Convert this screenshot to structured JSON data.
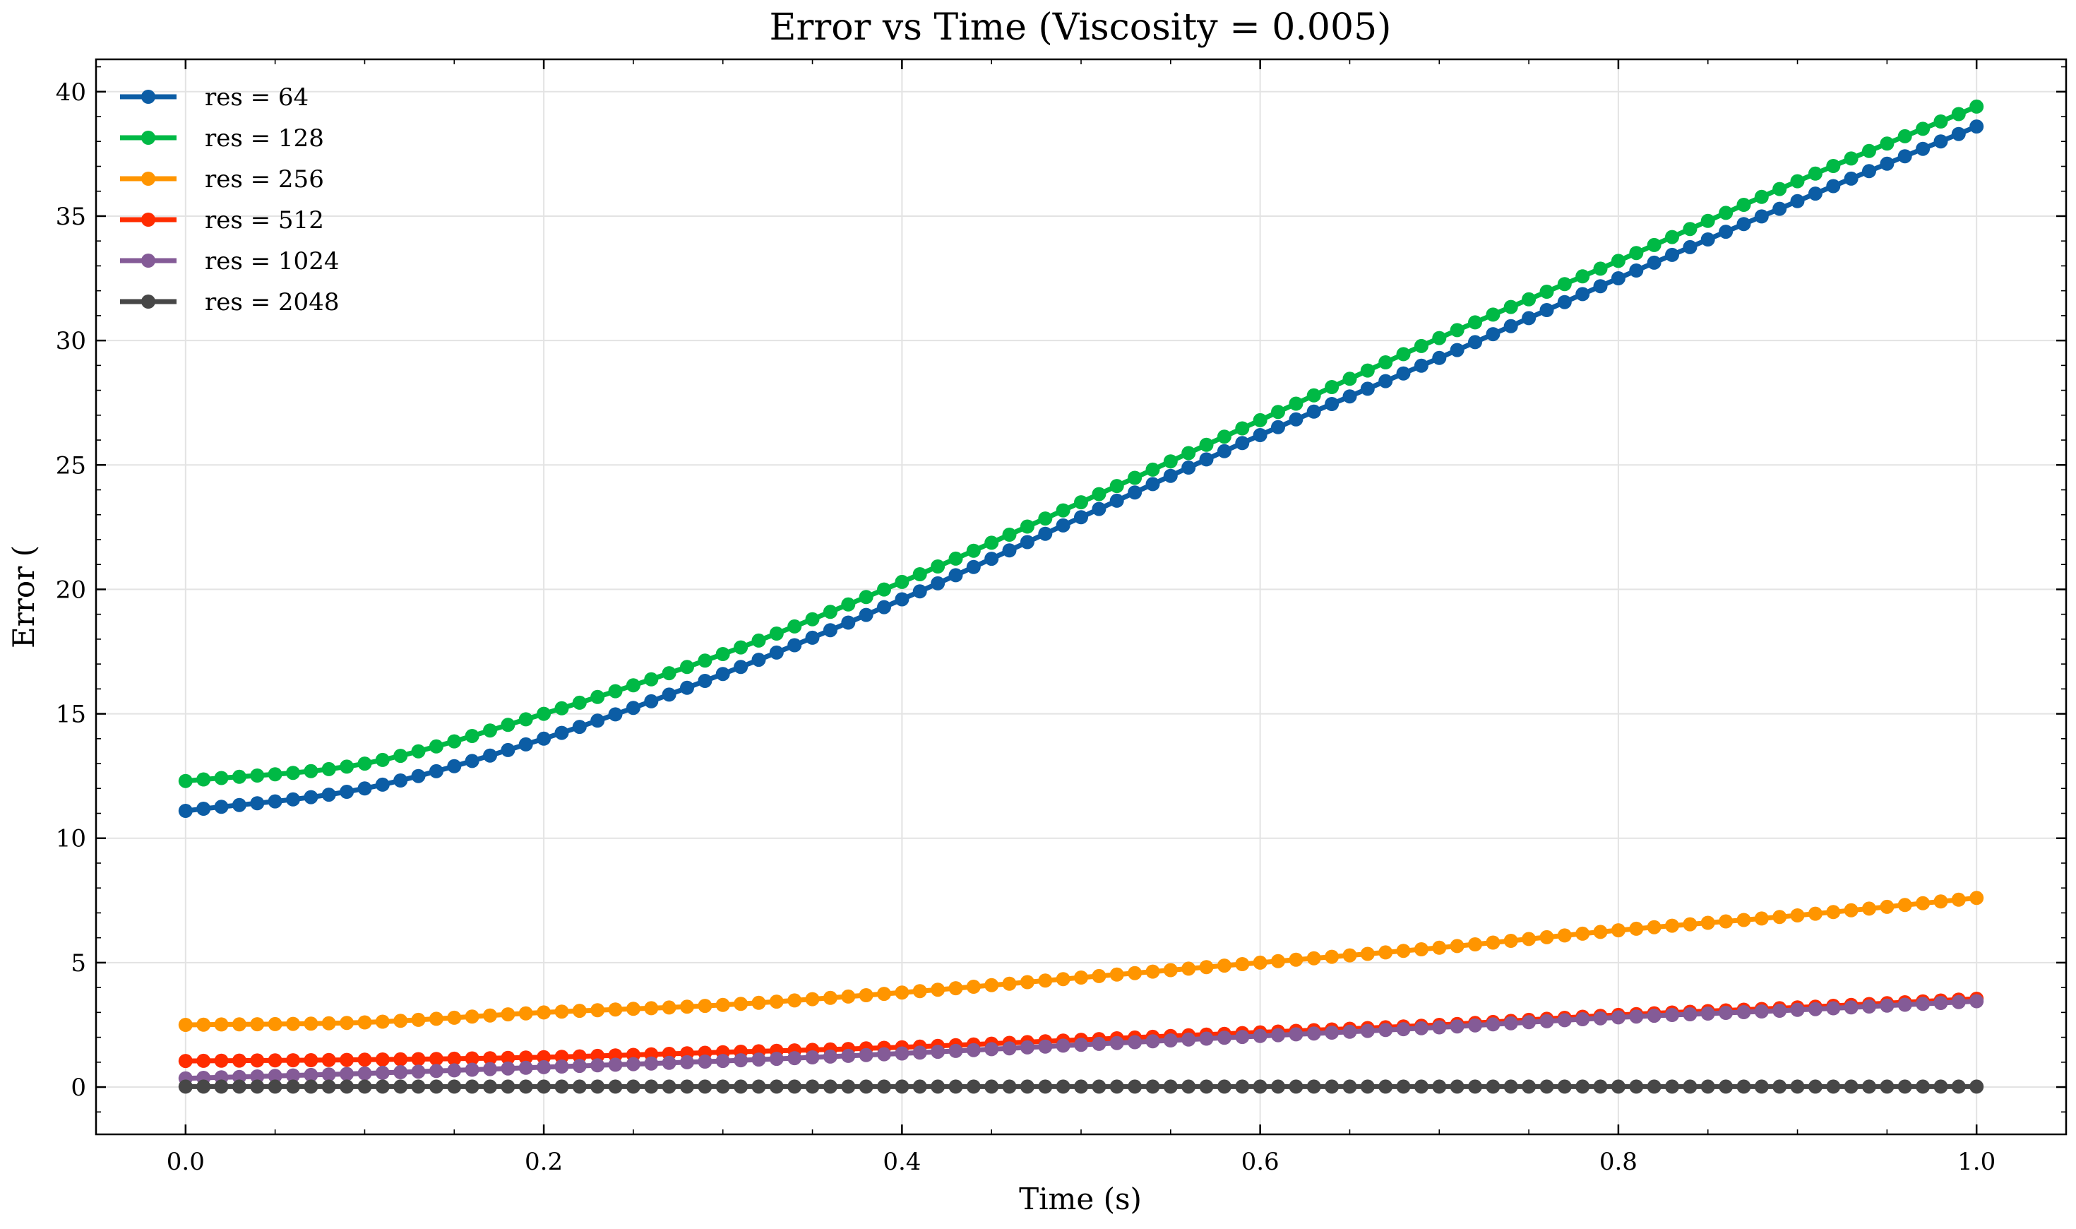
{
  "chart_data": {
    "type": "line",
    "title": "Error vs Time (Viscosity = 0.005)",
    "xlabel": "Time (s)",
    "ylabel": "Error (",
    "xlim": [
      -0.05,
      1.05
    ],
    "ylim": [
      -1.9,
      41.3
    ],
    "xticks": [
      0.0,
      0.2,
      0.4,
      0.6,
      0.8,
      1.0
    ],
    "xtick_labels": [
      "0.0",
      "0.2",
      "0.4",
      "0.6",
      "0.8",
      "1.0"
    ],
    "yticks": [
      0,
      5,
      10,
      15,
      20,
      25,
      30,
      35,
      40
    ],
    "ytick_labels": [
      "0",
      "5",
      "10",
      "15",
      "20",
      "25",
      "30",
      "35",
      "40"
    ],
    "grid": true,
    "legend_position": "top-left",
    "markers_per_series": 101,
    "x": [
      0.0,
      0.1,
      0.2,
      0.3,
      0.4,
      0.5,
      0.6,
      0.7,
      0.8,
      0.9,
      1.0
    ],
    "series": [
      {
        "name": "res = 64",
        "color": "#0C5DA5",
        "values": [
          11.1,
          12.0,
          14.0,
          16.6,
          19.6,
          22.9,
          26.2,
          29.3,
          32.5,
          35.6,
          38.6
        ]
      },
      {
        "name": "res = 128",
        "color": "#00B945",
        "values": [
          12.3,
          13.0,
          15.0,
          17.4,
          20.3,
          23.5,
          26.8,
          30.1,
          33.2,
          36.4,
          39.4
        ]
      },
      {
        "name": "res = 256",
        "color": "#FF9500",
        "values": [
          2.5,
          2.6,
          3.0,
          3.3,
          3.8,
          4.4,
          5.0,
          5.6,
          6.3,
          6.9,
          7.6
        ]
      },
      {
        "name": "res = 512",
        "color": "#FF2C00",
        "values": [
          1.05,
          1.1,
          1.2,
          1.4,
          1.6,
          1.9,
          2.2,
          2.5,
          2.9,
          3.2,
          3.55
        ]
      },
      {
        "name": "res = 1024",
        "color": "#845B97",
        "values": [
          0.35,
          0.55,
          0.8,
          1.05,
          1.35,
          1.7,
          2.05,
          2.4,
          2.8,
          3.1,
          3.45
        ]
      },
      {
        "name": "res = 2048",
        "color": "#474747",
        "values": [
          0.02,
          0.02,
          0.02,
          0.02,
          0.02,
          0.02,
          0.02,
          0.02,
          0.02,
          0.02,
          0.02
        ]
      }
    ]
  }
}
